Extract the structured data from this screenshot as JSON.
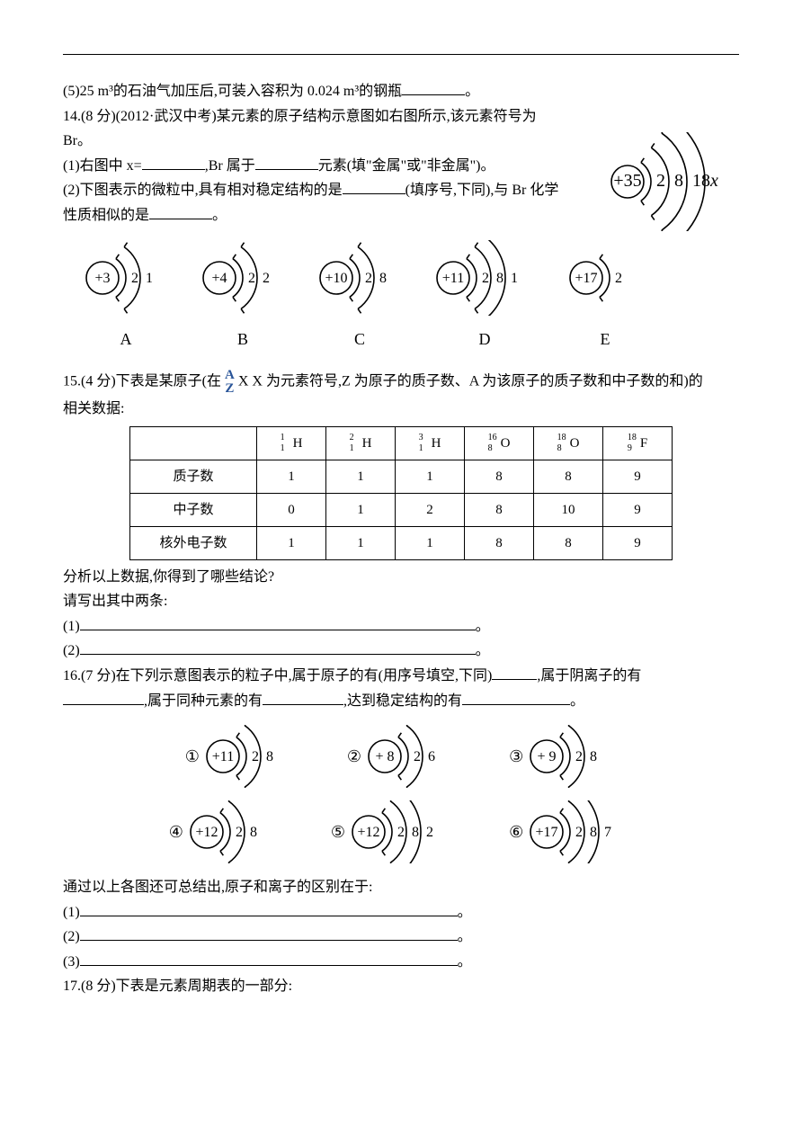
{
  "q13": {
    "part5": "(5)25 m³的石油气加压后,可装入容积为 0.024 m³的钢瓶",
    "period": "。"
  },
  "q14": {
    "head": "14.(8 分)(2012·武汉中考)某元素的原子结构示意图如右图所示,该元素符号为",
    "br": "Br。",
    "p1a": "(1)右图中 x=",
    "p1b": ",Br 属于",
    "p1c": "元素(填\"金属\"或\"非金属\")。",
    "p2a": "(2)下图表示的微粒中,具有相对稳定结构的是",
    "p2b": "(填序号,下同),与 Br 化学",
    "p2c": "性质相似的是",
    "p2d": "。",
    "main_atom": {
      "nucleus": "+35",
      "shells": [
        "2",
        "8",
        "18",
        "x"
      ],
      "italic_last": true
    },
    "options": [
      {
        "label": "A",
        "nucleus": "+3",
        "shells": [
          "2",
          "1"
        ]
      },
      {
        "label": "B",
        "nucleus": "+4",
        "shells": [
          "2",
          "2"
        ]
      },
      {
        "label": "C",
        "nucleus": "+10",
        "shells": [
          "2",
          "8"
        ]
      },
      {
        "label": "D",
        "nucleus": "+11",
        "shells": [
          "2",
          "8",
          "1"
        ]
      },
      {
        "label": "E",
        "nucleus": "+17",
        "shells": [
          "2"
        ]
      }
    ]
  },
  "q15": {
    "head_a": "15.(4 分)下表是某原子(在",
    "head_b": "X  X 为元素符号,Z 为原子的质子数、A 为该原子的质子数和中子数的和)的",
    "head_c": "相关数据:",
    "table": {
      "headers": [
        "",
        "¹₁H",
        "²₁H",
        "³₁H",
        "¹⁶₈O",
        "¹⁸₈O",
        "¹⁸₉F"
      ],
      "rows": [
        {
          "label": "质子数",
          "cells": [
            "1",
            "1",
            "1",
            "8",
            "8",
            "9"
          ]
        },
        {
          "label": "中子数",
          "cells": [
            "0",
            "1",
            "2",
            "8",
            "10",
            "9"
          ]
        },
        {
          "label": "核外电子数",
          "cells": [
            "1",
            "1",
            "1",
            "8",
            "8",
            "9"
          ]
        }
      ]
    },
    "analyze": "分析以上数据,你得到了哪些结论?",
    "write2": "请写出其中两条:",
    "l1": "(1)",
    "l2": "(2)",
    "period": "。"
  },
  "q16": {
    "head_a": "16.(7 分)在下列示意图表示的粒子中,属于原子的有(用序号填空,下同)",
    "head_b": ",属于阴离子的有",
    "head_c": ",属于同种元素的有",
    "head_d": ",达到稳定结构的有",
    "period": "。",
    "items": [
      {
        "num": "①",
        "nucleus": "+11",
        "shells": [
          "2",
          "8"
        ]
      },
      {
        "num": "②",
        "nucleus": "+ 8",
        "shells": [
          "2",
          "6"
        ]
      },
      {
        "num": "③",
        "nucleus": "+ 9",
        "shells": [
          "2",
          "8"
        ]
      },
      {
        "num": "④",
        "nucleus": "+12",
        "shells": [
          "2",
          "8"
        ]
      },
      {
        "num": "⑤",
        "nucleus": "+12",
        "shells": [
          "2",
          "8",
          "2"
        ]
      },
      {
        "num": "⑥",
        "nucleus": "+17",
        "shells": [
          "2",
          "8",
          "7"
        ]
      }
    ],
    "conclude": "通过以上各图还可总结出,原子和离子的区别在于:",
    "c1": "(1)",
    "c2": "(2)",
    "c3": "(3)",
    "cpunct": "。"
  },
  "q17": {
    "head": "17.(8 分)下表是元素周期表的一部分:"
  },
  "style": {
    "stroke": "#000000",
    "stroke_width": 1.6,
    "nucleus_r": 18,
    "shell_gap": 16,
    "font": "15px 'Times New Roman', serif"
  }
}
